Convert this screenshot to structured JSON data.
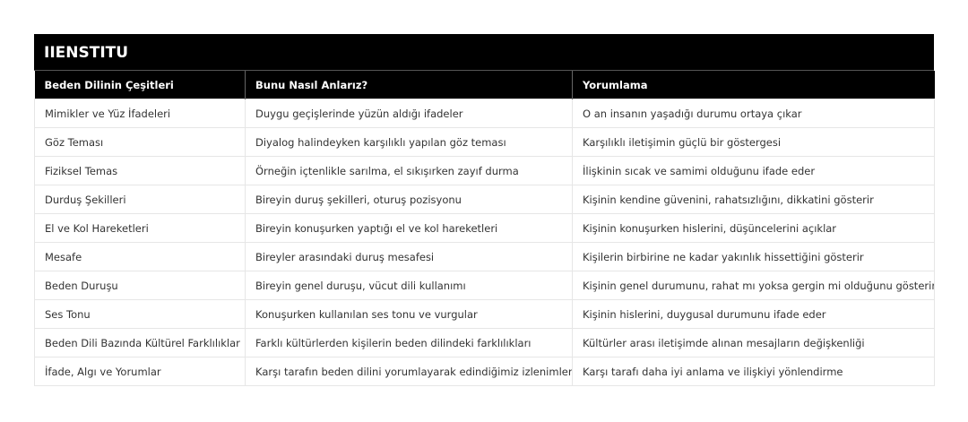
{
  "title": "IIENSTITU",
  "headers": [
    "Beden Dilinin Çeşitleri",
    "Bunu Nasıl Anlarız?",
    "Yorumlama"
  ],
  "rows": [
    [
      "Mimikler ve Yüz İfadeleri",
      "Duygu geçişlerinde yüzün aldığı ifadeler",
      "O an insanın yaşadığı durumu ortaya çıkar"
    ],
    [
      "Göz Teması",
      "Diyalog halindeyken karşılıklı yapılan göz teması",
      "Karşılıklı iletişimin güçlü bir göstergesi"
    ],
    [
      "Fiziksel Temas",
      "Örneğin içtenlikle sarılma, el sıkışırken zayıf durma",
      "İlişkinin sıcak ve samimi olduğunu ifade eder"
    ],
    [
      "Durduş Şekilleri",
      "Bireyin duruş şekilleri, oturuş pozisyonu",
      "Kişinin kendine güvenini, rahatsızlığını, dikkatini gösterir"
    ],
    [
      "El ve Kol Hareketleri",
      "Bireyin konuşurken yaptığı el ve kol hareketleri",
      "Kişinin konuşurken hislerini, düşüncelerini açıklar"
    ],
    [
      "Mesafe",
      "Bireyler arasındaki duruş mesafesi",
      "Kişilerin birbirine ne kadar yakınlık hissettiğini gösterir"
    ],
    [
      "Beden Duruşu",
      "Bireyin genel duruşu, vücut dili kullanımı",
      "Kişinin genel durumunu, rahat mı yoksa gergin mi olduğunu gösterir"
    ],
    [
      "Ses Tonu",
      "Konuşurken kullanılan ses tonu ve vurgular",
      "Kişinin hislerini, duygusal durumunu ifade eder"
    ],
    [
      "Beden Dili Bazında Kültürel Farklılıklar",
      "Farklı kültürlerden kişilerin beden dilindeki farklılıkları",
      "Kültürler arası iletişimde alınan mesajların değişkenliği"
    ],
    [
      "İfade, Algı ve Yorumlar",
      "Karşı tarafın beden dilini yorumlayarak edindiğimiz izlenimler",
      "Karşı tarafı daha iyi anlama ve ilişkiyi yönlendirme"
    ]
  ]
}
